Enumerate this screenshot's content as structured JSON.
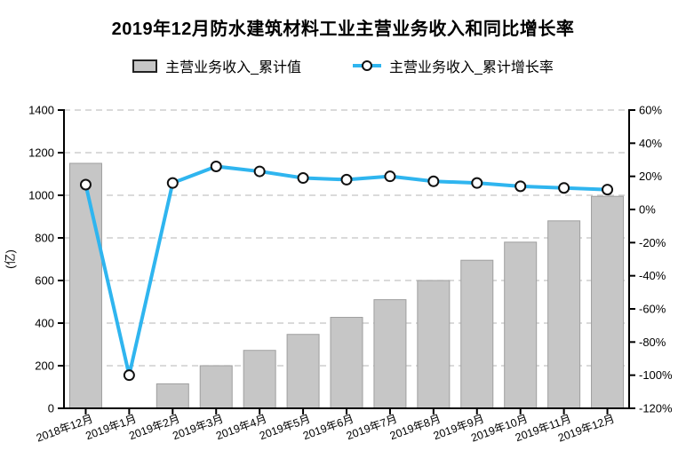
{
  "page": {
    "background": "#ffffff"
  },
  "chart_data": {
    "type": "bar",
    "title": "2019年12月防水建筑材料工业主营业务收入和同比增长率",
    "categories": [
      "2018年12月",
      "2019年1月",
      "2019年2月",
      "2019年3月",
      "2019年4月",
      "2019年5月",
      "2019年6月",
      "2019年7月",
      "2019年8月",
      "2019年9月",
      "2019年10月",
      "2019年11月",
      "2019年12月"
    ],
    "series": [
      {
        "name": "主营业务收入_累计值",
        "type": "bar",
        "axis": "left",
        "values": [
          1150,
          null,
          115,
          200,
          272,
          347,
          427,
          510,
          600,
          695,
          780,
          880,
          995
        ]
      },
      {
        "name": "主营业务收入_累计增长率",
        "type": "line",
        "axis": "right",
        "values": [
          15,
          -100,
          16,
          26,
          23,
          19,
          18,
          20,
          17,
          16,
          14,
          13,
          12
        ]
      }
    ],
    "left_axis": {
      "label": "(亿)",
      "min": 0,
      "max": 1400,
      "step": 200
    },
    "right_axis": {
      "min": -120,
      "max": 60,
      "step": 20,
      "suffix": "%"
    },
    "legend_position": "top",
    "grid": "horizontal-dashed",
    "colors": {
      "bar_fill": "#c6c6c6",
      "bar_border": "#9f9f9f",
      "line": "#2fb5ef",
      "marker_fill": "#ffffff",
      "marker_border": "#111111",
      "axis": "#000000",
      "grid": "#c3c3c3",
      "text": "#000000"
    }
  }
}
